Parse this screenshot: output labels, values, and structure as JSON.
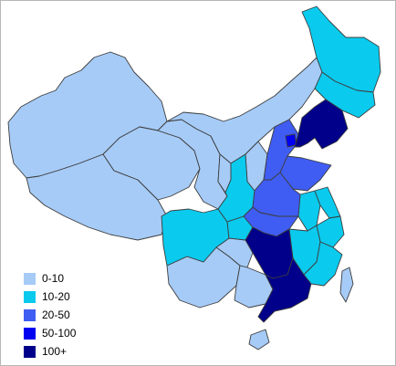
{
  "legend": {
    "items": [
      {
        "label": "0-10",
        "color": "#a6cbf7"
      },
      {
        "label": "10-20",
        "color": "#0acaee"
      },
      {
        "label": "20-50",
        "color": "#3f5df2"
      },
      {
        "label": "50-100",
        "color": "#0202f0"
      },
      {
        "label": "100+",
        "color": "#00008a"
      }
    ]
  },
  "regions": [
    {
      "name": "xinjiang",
      "bin": 0
    },
    {
      "name": "tibet",
      "bin": 0
    },
    {
      "name": "qinghai",
      "bin": 0
    },
    {
      "name": "gansu",
      "bin": 0
    },
    {
      "name": "inner-mongolia",
      "bin": 0
    },
    {
      "name": "ningxia",
      "bin": 0
    },
    {
      "name": "yunnan",
      "bin": 0
    },
    {
      "name": "guizhou",
      "bin": 0
    },
    {
      "name": "guangxi",
      "bin": 0
    },
    {
      "name": "shanxi",
      "bin": 0
    },
    {
      "name": "heilongjiang",
      "bin": 1
    },
    {
      "name": "jilin",
      "bin": 1
    },
    {
      "name": "sichuan",
      "bin": 1
    },
    {
      "name": "chongqing",
      "bin": 1
    },
    {
      "name": "shaanxi",
      "bin": 1
    },
    {
      "name": "jiangxi",
      "bin": 1
    },
    {
      "name": "fujian",
      "bin": 1
    },
    {
      "name": "anhui",
      "bin": 1
    },
    {
      "name": "jiangsu",
      "bin": 1
    },
    {
      "name": "zhejiang",
      "bin": 1
    },
    {
      "name": "taiwan",
      "bin": 0
    },
    {
      "name": "hainan",
      "bin": 0
    },
    {
      "name": "hebei",
      "bin": 2
    },
    {
      "name": "henan",
      "bin": 2
    },
    {
      "name": "hubei",
      "bin": 2
    },
    {
      "name": "shandong",
      "bin": 2
    },
    {
      "name": "beijing",
      "bin": 3
    },
    {
      "name": "liaoning",
      "bin": 4
    },
    {
      "name": "hunan",
      "bin": 4
    },
    {
      "name": "guangdong",
      "bin": 4
    }
  ]
}
